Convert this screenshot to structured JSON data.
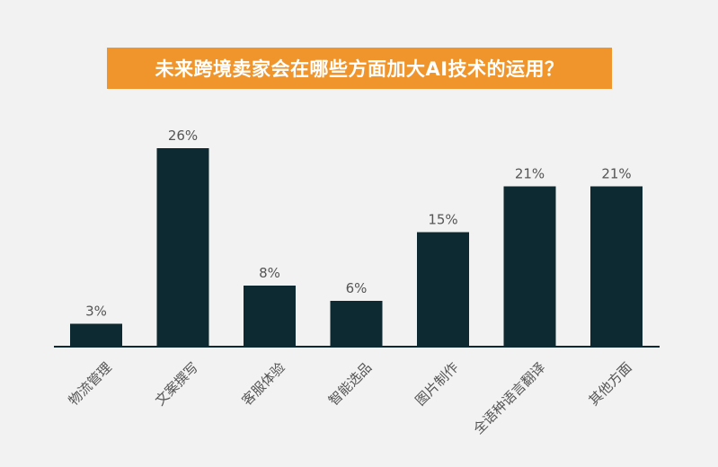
{
  "chart_data": {
    "type": "bar",
    "title": "未来跨境卖家会在哪些方面加大AI技术的运用？",
    "categories": [
      "物流管理",
      "文案撰写",
      "客服体验",
      "智能选品",
      "图片制作",
      "全语种语言翻译",
      "其他方面"
    ],
    "values": [
      3,
      26,
      8,
      6,
      15,
      21,
      21
    ],
    "value_labels": [
      "3%",
      "26%",
      "8%",
      "6%",
      "15%",
      "21%",
      "21%"
    ],
    "xlabel": "",
    "ylabel": "",
    "ylim": [
      0,
      26
    ],
    "grid": false,
    "legend": "none"
  },
  "colors": {
    "background": "#f2f2f2",
    "title_banner": "#f0952b",
    "title_text": "#ffffff",
    "bar": "#0d2a33",
    "axis": "#0d2a33",
    "label_text": "#555555"
  }
}
